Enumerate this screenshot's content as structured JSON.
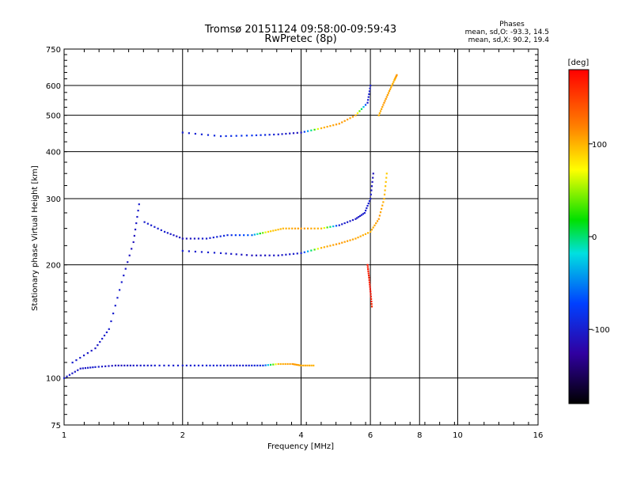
{
  "chart_data": {
    "type": "scatter",
    "title": "Tromsø 20151124 09:58:00-09:59:43",
    "subtitle": "RwPretec (8p)",
    "xlabel": "Frequency [MHz]",
    "ylabel": "Stationary phase Virtual Height [km]",
    "x_scale": "log2",
    "y_scale": "log",
    "xlim": [
      1,
      16
    ],
    "ylim": [
      75,
      750
    ],
    "x_ticks": [
      "1",
      "2",
      "4",
      "6",
      "8",
      "10",
      "16"
    ],
    "y_ticks": [
      "75",
      "100",
      "200",
      "300",
      "400",
      "500",
      "600",
      "750"
    ],
    "legend": {
      "title": "Phases",
      "line_o": "mean, sd,O: -93.3, 14.5",
      "line_x": "mean, sd,X:  90.2, 19.4"
    },
    "colorbar": {
      "label": "[deg]",
      "range": [
        -180,
        180
      ],
      "ticks": [
        "100",
        "0",
        "-100"
      ],
      "tick_values": [
        100,
        0,
        -100
      ]
    },
    "traces": [
      {
        "x": [
          1.0,
          1.1,
          1.2,
          1.35,
          1.5,
          1.7,
          2.0,
          2.3,
          2.6,
          2.9,
          3.2,
          3.5,
          3.8,
          4.0,
          4.3
        ],
        "y": [
          100,
          106,
          107,
          108,
          108,
          108,
          108,
          108,
          108,
          108,
          108,
          109,
          109,
          108,
          108
        ],
        "phase": [
          -100,
          -105,
          -100,
          -110,
          -105,
          -100,
          -100,
          -95,
          -100,
          -100,
          -90,
          100,
          110,
          105,
          100
        ]
      },
      {
        "x": [
          1.05,
          1.2,
          1.3,
          1.4,
          1.5,
          1.55
        ],
        "y": [
          110,
          120,
          135,
          180,
          230,
          290
        ],
        "phase": [
          -100,
          -105,
          -100,
          -100,
          -110,
          -100
        ]
      },
      {
        "x": [
          1.6,
          1.8,
          2.0,
          2.3,
          2.6,
          3.0,
          3.3,
          3.6,
          4.0,
          4.5,
          5.0,
          5.5,
          5.8,
          6.0,
          6.1
        ],
        "y": [
          260,
          245,
          235,
          235,
          240,
          240,
          245,
          250,
          250,
          250,
          255,
          265,
          275,
          300,
          350
        ],
        "phase": [
          -100,
          -100,
          -110,
          -100,
          -90,
          -60,
          90,
          100,
          110,
          100,
          -100,
          -105,
          -100,
          -100,
          -110
        ]
      },
      {
        "x": [
          2.0,
          2.5,
          3.0,
          3.5,
          4.0,
          4.5,
          5.0,
          5.5,
          6.0,
          6.3,
          6.5,
          6.6
        ],
        "y": [
          218,
          215,
          212,
          212,
          215,
          222,
          228,
          235,
          245,
          265,
          300,
          350
        ],
        "phase": [
          -100,
          -100,
          -110,
          -105,
          -100,
          100,
          110,
          105,
          100,
          110,
          100,
          90
        ]
      },
      {
        "x": [
          2.0,
          2.5,
          3.0,
          3.5,
          4.0,
          4.5,
          5.0,
          5.5,
          5.9,
          6.0
        ],
        "y": [
          450,
          440,
          442,
          445,
          450,
          462,
          475,
          500,
          540,
          600
        ],
        "phase": [
          -100,
          -90,
          -80,
          -100,
          -110,
          100,
          110,
          105,
          -100,
          -100
        ]
      },
      {
        "x": [
          6.3,
          6.5,
          6.7,
          6.9,
          7.0
        ],
        "y": [
          500,
          540,
          580,
          620,
          640
        ],
        "phase": [
          100,
          110,
          105,
          100,
          110
        ]
      },
      {
        "x": [
          5.9,
          5.95,
          6.0,
          6.05
        ],
        "y": [
          200,
          185,
          170,
          155
        ],
        "phase": [
          170,
          165,
          175,
          160
        ]
      }
    ]
  }
}
